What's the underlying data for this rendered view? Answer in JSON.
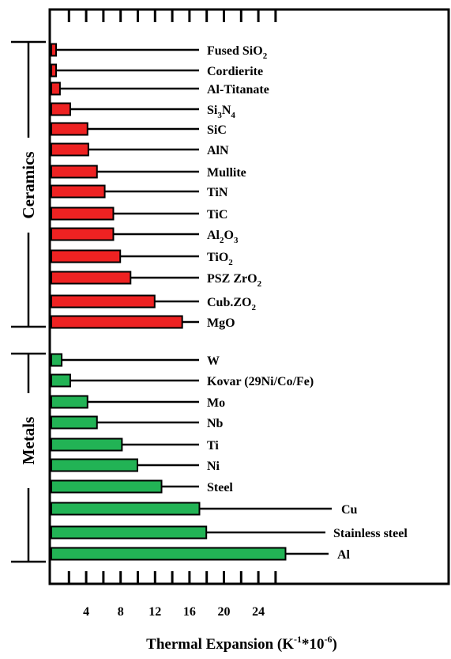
{
  "chart_data": {
    "type": "bar",
    "orientation": "horizontal",
    "title": "",
    "xlabel": "Thermal Expansion (K-1*10-6)",
    "xlabel_parts": {
      "main": "Thermal Expansion (K",
      "sup1": "-1",
      "mid": "*10",
      "sup2": "-6",
      "end": ")"
    },
    "ylabel": "",
    "xticks": [
      "4",
      "8",
      "12",
      "16",
      "20",
      "24"
    ],
    "xlim": [
      0,
      29
    ],
    "grid": false,
    "legend": "none",
    "groups": [
      {
        "name": "Ceramics",
        "color": "#ee2222"
      },
      {
        "name": "Metals",
        "color": "#22b355"
      }
    ],
    "series": [
      {
        "name": "Ceramics",
        "categories": [
          {
            "base": "Fused SiO",
            "sub": "2",
            "rest": ""
          },
          {
            "base": "Cordierite",
            "sub": "",
            "rest": ""
          },
          {
            "base": "Al-Titanate",
            "sub": "",
            "rest": ""
          },
          {
            "base": "Si",
            "sub": "3",
            "rest": "N",
            "sub2": "4"
          },
          {
            "base": "SiC",
            "sub": "",
            "rest": ""
          },
          {
            "base": "AlN",
            "sub": "",
            "rest": ""
          },
          {
            "base": "Mullite",
            "sub": "",
            "rest": ""
          },
          {
            "base": "TiN",
            "sub": "",
            "rest": ""
          },
          {
            "base": "TiC",
            "sub": "",
            "rest": ""
          },
          {
            "base": "Al",
            "sub": "2",
            "rest": "O",
            "sub2": "3"
          },
          {
            "base": "TiO",
            "sub": "2",
            "rest": ""
          },
          {
            "base": "PSZ ZrO",
            "sub": "2",
            "rest": ""
          },
          {
            "base": "Cub.ZO",
            "sub": "2",
            "rest": ""
          },
          {
            "base": "MgO",
            "sub": "",
            "rest": ""
          }
        ],
        "values": [
          0.5,
          0.5,
          1.0,
          2.2,
          4.2,
          4.3,
          5.3,
          6.2,
          7.2,
          7.2,
          8.0,
          9.2,
          12.0,
          15.2
        ]
      },
      {
        "name": "Metals",
        "categories": [
          {
            "base": "W",
            "sub": "",
            "rest": ""
          },
          {
            "base": "Kovar (29Ni/Co/Fe)",
            "sub": "",
            "rest": ""
          },
          {
            "base": "Mo",
            "sub": "",
            "rest": ""
          },
          {
            "base": "Nb",
            "sub": "",
            "rest": ""
          },
          {
            "base": "Ti",
            "sub": "",
            "rest": ""
          },
          {
            "base": "Ni",
            "sub": "",
            "rest": ""
          },
          {
            "base": "Steel",
            "sub": "",
            "rest": ""
          },
          {
            "base": "Cu",
            "sub": "",
            "rest": ""
          },
          {
            "base": "Stainless steel",
            "sub": "",
            "rest": ""
          },
          {
            "base": "Al",
            "sub": "",
            "rest": ""
          }
        ],
        "values": [
          1.2,
          2.2,
          4.2,
          5.3,
          8.2,
          10.0,
          12.8,
          17.2,
          18.0,
          27.2
        ]
      }
    ]
  }
}
